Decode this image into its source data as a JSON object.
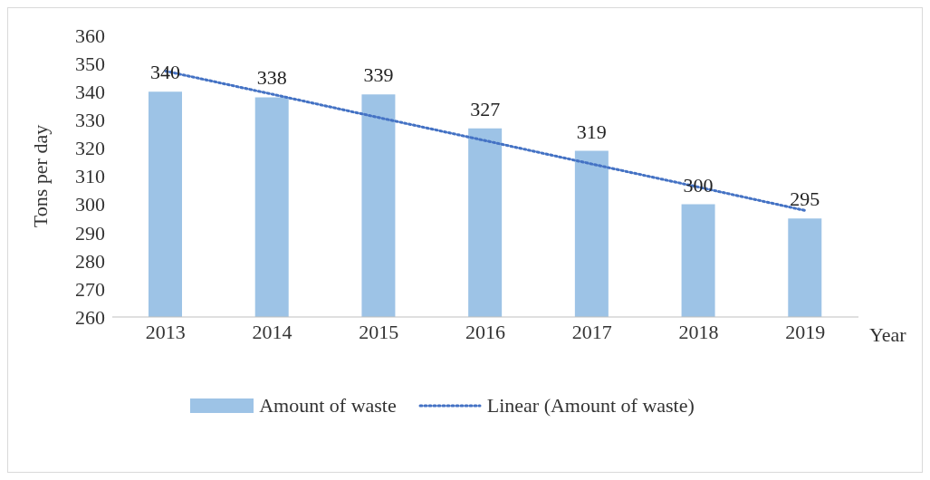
{
  "chart_data": {
    "type": "bar",
    "categories": [
      "2013",
      "2014",
      "2015",
      "2016",
      "2017",
      "2018",
      "2019"
    ],
    "series": [
      {
        "name": "Amount of waste",
        "color": "#9dc3e6",
        "values": [
          340,
          338,
          339,
          327,
          319,
          300,
          295
        ],
        "value_labels": [
          "340",
          "338",
          "339",
          "327",
          "319",
          "300",
          "295"
        ]
      },
      {
        "name": "Linear (Amount of waste)",
        "type": "line",
        "color": "#4472c4",
        "line_style": "dotted",
        "marker": "none",
        "values": [
          347.3,
          339.1,
          330.8,
          322.6,
          314.3,
          306.1,
          297.8
        ]
      }
    ],
    "xlabel": "Year",
    "ylabel": "Tons per day",
    "ylim": [
      260,
      360
    ],
    "yticks": [
      260,
      270,
      280,
      290,
      300,
      310,
      320,
      330,
      340,
      350,
      360
    ],
    "legend": "bottom"
  }
}
